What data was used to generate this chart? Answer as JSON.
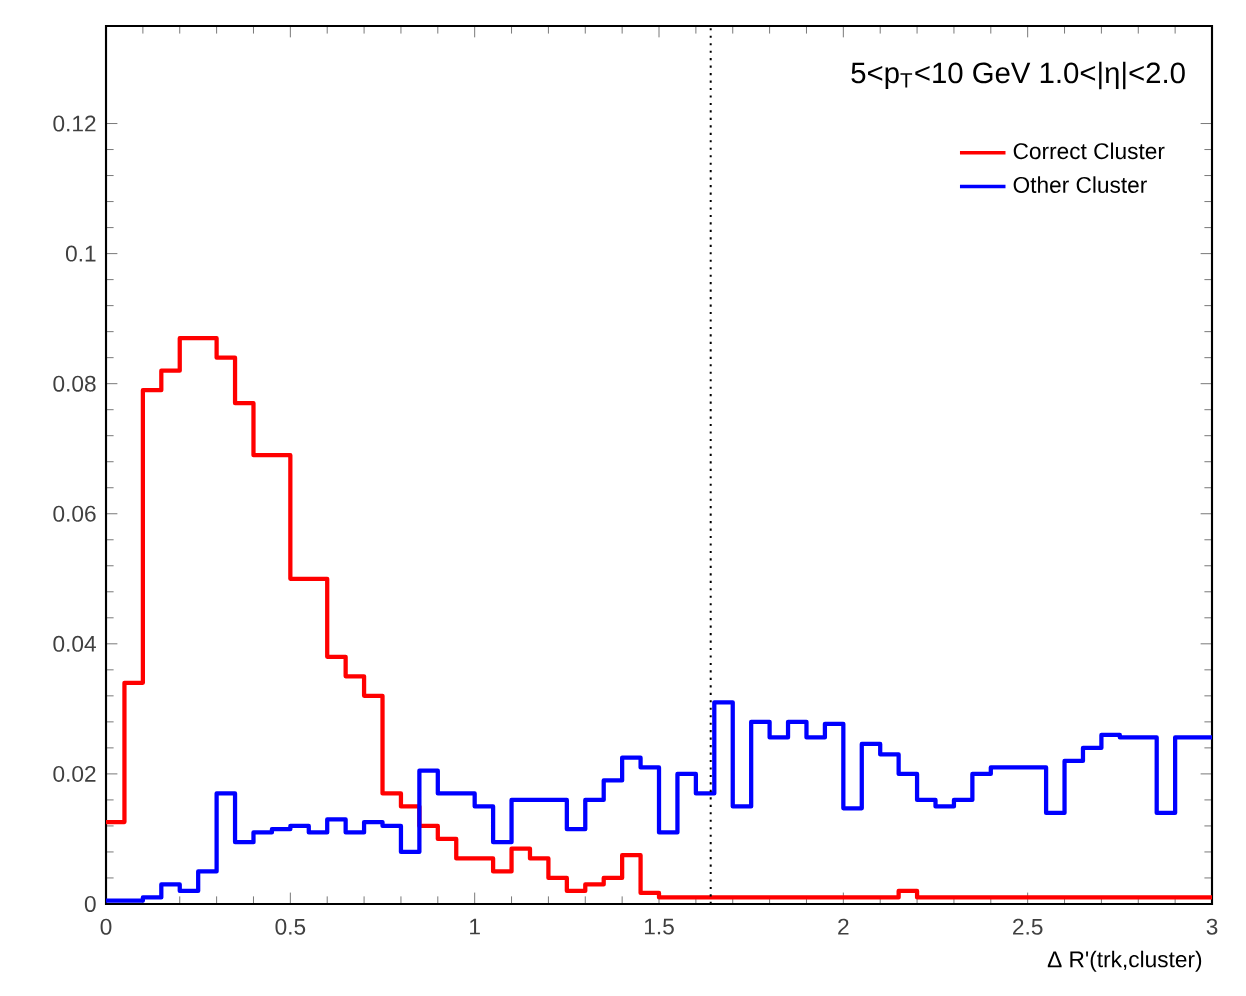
{
  "chart_data": {
    "type": "histogram",
    "title": "5<p$_{T}$<10 GeV 1.0<|η|<2.0",
    "xlabel": "Δ R'(trk,cluster)",
    "bins": [
      0,
      0.05,
      0.1,
      0.15,
      0.2,
      0.25,
      0.3,
      0.35,
      0.4,
      0.45,
      0.5,
      0.55,
      0.6,
      0.65,
      0.7,
      0.75,
      0.8,
      0.85,
      0.9,
      0.95,
      1,
      1.05,
      1.1,
      1.15,
      1.2,
      1.25,
      1.3,
      1.35,
      1.4,
      1.45,
      1.5,
      1.55,
      1.6,
      1.65,
      1.7,
      1.75,
      1.8,
      1.85,
      1.9,
      1.95,
      2,
      2.05,
      2.1,
      2.15,
      2.2,
      2.25,
      2.3,
      2.35,
      2.4,
      2.45,
      2.5,
      2.55,
      2.6,
      2.65,
      2.7,
      2.75,
      2.8,
      2.85,
      2.9,
      2.95,
      3
    ],
    "series": [
      {
        "name": "Correct Cluster",
        "color": "#ff0000",
        "values": [
          0.0126,
          0.034,
          0.079,
          0.082,
          0.087,
          0.087,
          0.084,
          0.077,
          0.069,
          0.069,
          0.05,
          0.05,
          0.038,
          0.035,
          0.032,
          0.017,
          0.015,
          0.012,
          0.01,
          0.007,
          0.007,
          0.005,
          0.0085,
          0.007,
          0.004,
          0.002,
          0.003,
          0.004,
          0.0075,
          0.0017,
          0.001,
          0.001,
          0.001,
          0.001,
          0.001,
          0.001,
          0.001,
          0.001,
          0.001,
          0.001,
          0.001,
          0.001,
          0.001,
          0.002,
          0.001,
          0.001,
          0.001,
          0.001,
          0.001,
          0.001,
          0.001,
          0.001,
          0.001,
          0.001,
          0.001,
          0.001,
          0.001,
          0.001,
          0.001,
          0.001
        ]
      },
      {
        "name": "Other Cluster",
        "color": "#0000ff",
        "values": [
          0.0005,
          0.0005,
          0.001,
          0.003,
          0.002,
          0.005,
          0.017,
          0.0095,
          0.011,
          0.0115,
          0.012,
          0.011,
          0.013,
          0.011,
          0.0126,
          0.012,
          0.008,
          0.0205,
          0.017,
          0.017,
          0.015,
          0.0095,
          0.016,
          0.016,
          0.016,
          0.0115,
          0.016,
          0.019,
          0.0225,
          0.021,
          0.011,
          0.02,
          0.017,
          0.031,
          0.015,
          0.028,
          0.0256,
          0.028,
          0.0256,
          0.0277,
          0.0147,
          0.0246,
          0.023,
          0.02,
          0.016,
          0.015,
          0.016,
          0.02,
          0.021,
          0.021,
          0.021,
          0.014,
          0.022,
          0.024,
          0.026,
          0.0256,
          0.0256,
          0.014,
          0.0256,
          0.0256
        ]
      }
    ],
    "xlim": [
      0,
      3
    ],
    "ylim": [
      0,
      0.135
    ],
    "xticks": [
      0,
      0.5,
      1,
      1.5,
      2,
      2.5,
      3
    ],
    "yticks": [
      0,
      0.02,
      0.04,
      0.06,
      0.08,
      0.1,
      0.12
    ],
    "ref_lines": [
      {
        "axis": "x",
        "value": 1.64,
        "color": "#000000",
        "line_style": "dotted"
      }
    ],
    "legend": "top right",
    "grid": false
  }
}
